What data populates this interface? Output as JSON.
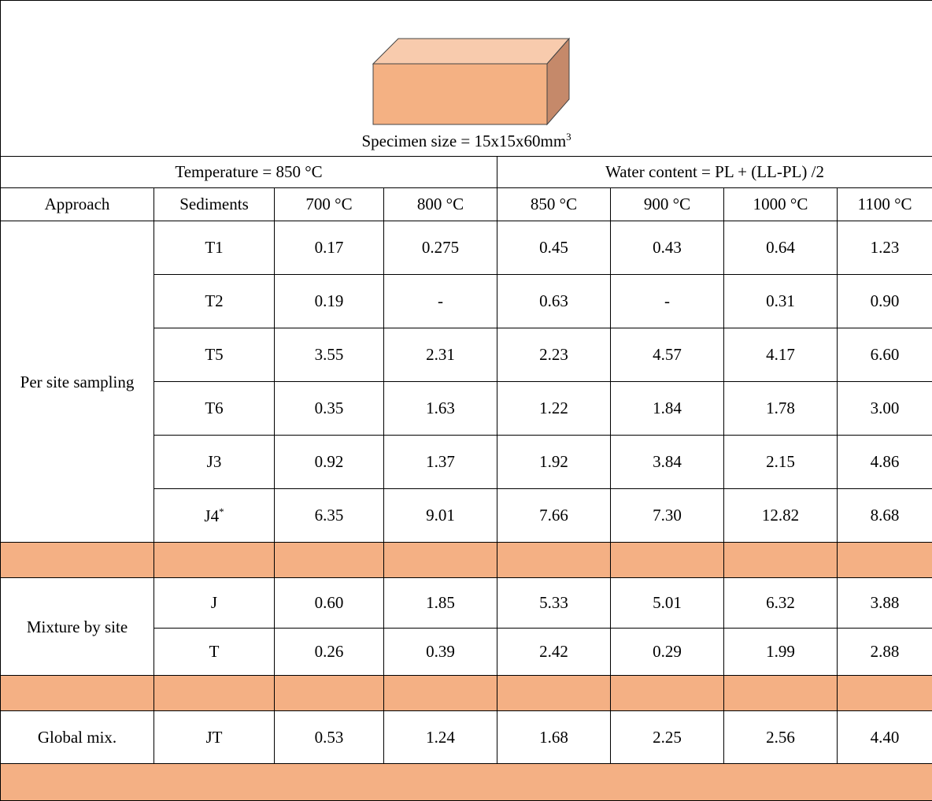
{
  "header": {
    "caption": "Specimen size = 15x15x60mm",
    "caption_sup": "3",
    "left": "Temperature = 850 °C",
    "right": "Water content = PL + (LL-PL) /2"
  },
  "table": {
    "columns": [
      "Approach",
      "Sediments",
      "700 °C",
      "800 °C",
      "850 °C",
      "900 °C",
      "1000 °C",
      "1100 °C"
    ],
    "groups": [
      {
        "label": "Per site sampling",
        "rows": [
          {
            "sediment": "T1",
            "values": [
              "0.17",
              "0.275",
              "0.45",
              "0.43",
              "0.64",
              "1.23"
            ]
          },
          {
            "sediment": "T2",
            "values": [
              "0.19",
              "-",
              "0.63",
              "-",
              "0.31",
              "0.90"
            ]
          },
          {
            "sediment": "T5",
            "values": [
              "3.55",
              "2.31",
              "2.23",
              "4.57",
              "4.17",
              "6.60"
            ]
          },
          {
            "sediment": "T6",
            "values": [
              "0.35",
              "1.63",
              "1.22",
              "1.84",
              "1.78",
              "3.00"
            ]
          },
          {
            "sediment": "J3",
            "values": [
              "0.92",
              "1.37",
              "1.92",
              "3.84",
              "2.15",
              "4.86"
            ]
          },
          {
            "sediment": "J4",
            "sediment_sup": "*",
            "values": [
              "6.35",
              "9.01",
              "7.66",
              "7.30",
              "12.82",
              "8.68"
            ]
          }
        ]
      },
      {
        "label": "Mixture by site",
        "rows": [
          {
            "sediment": "J",
            "values": [
              "0.60",
              "1.85",
              "5.33",
              "5.01",
              "6.32",
              "3.88"
            ]
          },
          {
            "sediment": "T",
            "values": [
              "0.26",
              "0.39",
              "2.42",
              "0.29",
              "1.99",
              "2.88"
            ]
          }
        ]
      },
      {
        "label": "Global mix.",
        "rows": [
          {
            "sediment": "JT",
            "values": [
              "0.53",
              "1.24",
              "1.68",
              "2.25",
              "2.56",
              "4.40"
            ]
          }
        ]
      }
    ]
  }
}
